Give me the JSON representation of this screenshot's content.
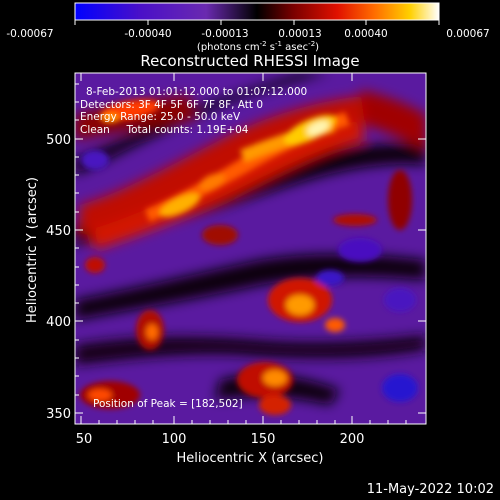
{
  "colorbar": {
    "ticks": [
      "-0.00067",
      "-0.00040",
      "-0.00013",
      "0.00013",
      "0.00040",
      "0.00067"
    ],
    "units_prefix": "(photons cm",
    "units_sup1": "-2",
    "units_mid1": " s",
    "units_sup2": "-1",
    "units_mid2": " asec",
    "units_sup3": "-2",
    "units_suffix": ")"
  },
  "title": "Reconstructed RHESSI Image",
  "annotations": {
    "line1": "8-Feb-2013 01:01:12.000 to 01:07:12.000",
    "line2": "Detectors: 3F 4F 5F 6F 7F 8F, Att 0",
    "line3": "Energy Range: 25.0 - 50.0 keV",
    "line4": "Clean     Total counts: 1.19E+04",
    "peak": "Position of Peak = [182,502]"
  },
  "axes": {
    "xlabel": "Heliocentric X (arcsec)",
    "ylabel": "Heliocentric Y (arcsec)",
    "xticks": [
      "50",
      "100",
      "150",
      "200"
    ],
    "yticks": [
      "350",
      "400",
      "450",
      "500"
    ]
  },
  "footer": {
    "timestamp": "11-May-2022 10:02"
  },
  "colors": {
    "colormap": [
      "#0000ff",
      "#5a00b4",
      "#7a2aa8",
      "#000000",
      "#4a0000",
      "#b40000",
      "#ff3200",
      "#ff9600",
      "#ffd200",
      "#ffffff"
    ]
  }
}
